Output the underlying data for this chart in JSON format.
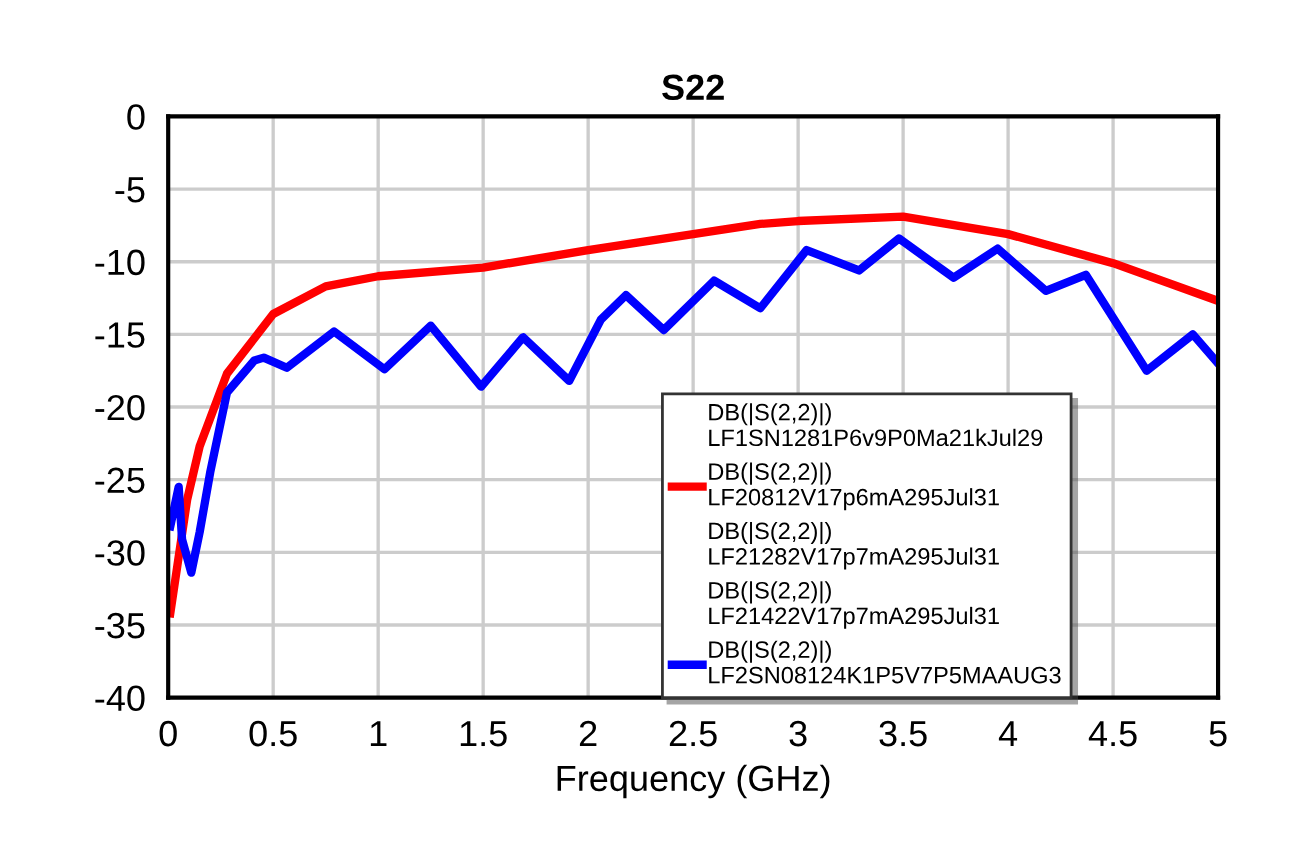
{
  "chart_data": {
    "type": "line",
    "title": "S22",
    "xlabel": "Frequency (GHz)",
    "xlim": [
      0,
      5
    ],
    "xticks": [
      0,
      0.5,
      1,
      1.5,
      2,
      2.5,
      3,
      3.5,
      4,
      4.5,
      5
    ],
    "ylim": [
      -40,
      0
    ],
    "yticks": [
      -40,
      -35,
      -30,
      -25,
      -20,
      -15,
      -10,
      -5,
      0
    ],
    "grid": true,
    "legend": "bottom right",
    "marker": "none",
    "line_style": "solid",
    "series": [
      {
        "name": "DB(|S(2,2)|)\nLF1SN1281P6v9P0Ma21kJul29"
      },
      {
        "name": "DB(|S(2,2)|)\nLF20812V17p6mA295Jul31",
        "color": "#ff0000",
        "x": [
          0.01,
          0.09,
          0.15,
          0.28,
          0.5,
          0.75,
          1.0,
          1.5,
          2.0,
          2.5,
          2.82,
          3.0,
          3.5,
          4.0,
          4.5,
          5.0
        ],
        "values": [
          -34.2,
          -26.4,
          -22.7,
          -17.7,
          -13.6,
          -11.7,
          -11,
          -10.4,
          -9.2,
          -8.1,
          -7.4,
          -7.2,
          -6.9,
          -8.1,
          -10.1,
          -12.7
        ]
      },
      {
        "name": "DB(|S(2,2)|)\nLF21282V17p7mA295Jul31"
      },
      {
        "name": "DB(|S(2,2)|)\nLF21422V17p7mA295Jul31"
      },
      {
        "name": "DB(|S(2,2)|)\nLF2SN08124K1P5V7P5MAAUG3",
        "color": "#0000ff",
        "x": [
          0.01,
          0.05,
          0.066,
          0.11,
          0.15,
          0.2,
          0.28,
          0.41,
          0.455,
          0.565,
          0.79,
          1.03,
          1.25,
          1.49,
          1.69,
          1.91,
          2.06,
          2.18,
          2.36,
          2.6,
          2.82,
          3.04,
          3.29,
          3.48,
          3.74,
          3.95,
          4.18,
          4.37,
          4.66,
          4.88,
          5.0
        ],
        "values": [
          -28.2,
          -25.5,
          -29.1,
          -31.4,
          -28.6,
          -24.5,
          -19,
          -16.8,
          -16.6,
          -17.3,
          -14.8,
          -17.4,
          -14.4,
          -18.6,
          -15.2,
          -18.2,
          -14,
          -12.3,
          -14.7,
          -11.3,
          -13.2,
          -9.2,
          -10.6,
          -8.4,
          -11.1,
          -9.1,
          -12,
          -10.9,
          -17.5,
          -15,
          -17
        ]
      }
    ]
  }
}
